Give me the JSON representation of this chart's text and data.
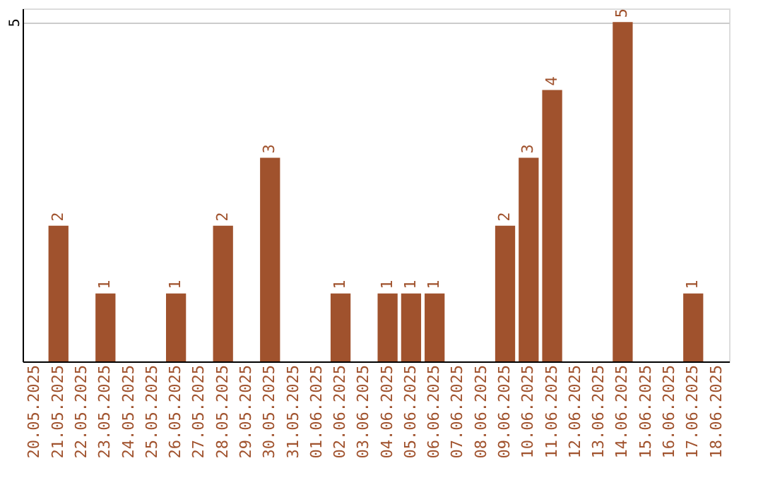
{
  "chart_data": {
    "type": "bar",
    "categories": [
      "20.05.2025",
      "21.05.2025",
      "22.05.2025",
      "23.05.2025",
      "24.05.2025",
      "25.05.2025",
      "26.05.2025",
      "27.05.2025",
      "28.05.2025",
      "29.05.2025",
      "30.05.2025",
      "31.05.2025",
      "01.06.2025",
      "02.06.2025",
      "03.06.2025",
      "04.06.2025",
      "05.06.2025",
      "06.06.2025",
      "07.06.2025",
      "08.06.2025",
      "09.06.2025",
      "10.06.2025",
      "11.06.2025",
      "12.06.2025",
      "13.06.2025",
      "14.06.2025",
      "15.06.2025",
      "16.06.2025",
      "17.06.2025",
      "18.06.2025"
    ],
    "values": [
      0,
      2,
      0,
      1,
      0,
      0,
      1,
      0,
      2,
      0,
      3,
      0,
      0,
      1,
      0,
      1,
      1,
      1,
      0,
      0,
      2,
      3,
      4,
      0,
      0,
      5,
      0,
      0,
      1,
      0
    ],
    "value_labels": [
      null,
      "2",
      null,
      "1",
      null,
      null,
      "1",
      null,
      "2",
      null,
      "3",
      null,
      null,
      "1",
      null,
      "1",
      "1",
      "1",
      null,
      null,
      "2",
      "3",
      "4",
      null,
      null,
      "5",
      null,
      null,
      "1",
      null
    ],
    "color": "#a0522d",
    "ylim": [
      0,
      5.2
    ],
    "yticks": [
      5
    ],
    "grid": "y"
  }
}
